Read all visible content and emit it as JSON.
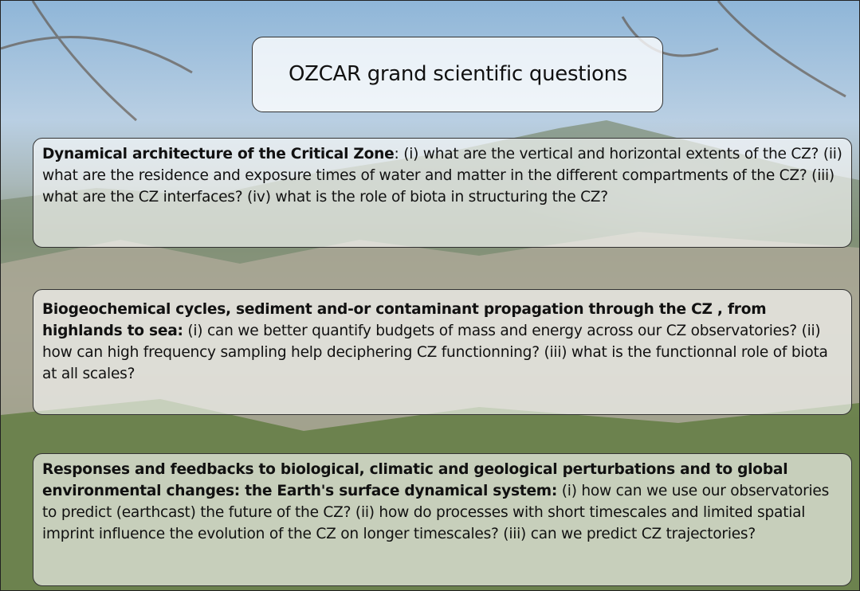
{
  "title": "OZCAR grand scientific questions",
  "boxes": [
    {
      "heading": "Dynamical architecture of the Critical Zone",
      "body": ": (i) what are the vertical and horizontal extents of the CZ? (ii) what are the residence and exposure times of water and matter in the different compartments of the CZ? (iii) what are the CZ interfaces? (iv) what is the role of biota in structuring the CZ?"
    },
    {
      "heading": "Biogeochemical cycles, sediment and-or contaminant propagation through the CZ , from highlands to sea:",
      "body": " (i) can we better quantify budgets of mass and energy across our CZ observatories? (ii) how can high frequency sampling help deciphering CZ functionning? (iii) what is the functionnal role of biota at all scales?"
    },
    {
      "heading": "Responses and feedbacks to biological, climatic and geological perturbations and to global environmental changes: the Earth's surface dynamical system:",
      "body": " (i) how can we use our observatories to predict (earthcast) the future of the CZ? (ii) how do processes with short timescales and limited spatial imprint influence the evolution of the CZ on longer timescales? (iii) can we predict CZ trajectories?"
    }
  ]
}
